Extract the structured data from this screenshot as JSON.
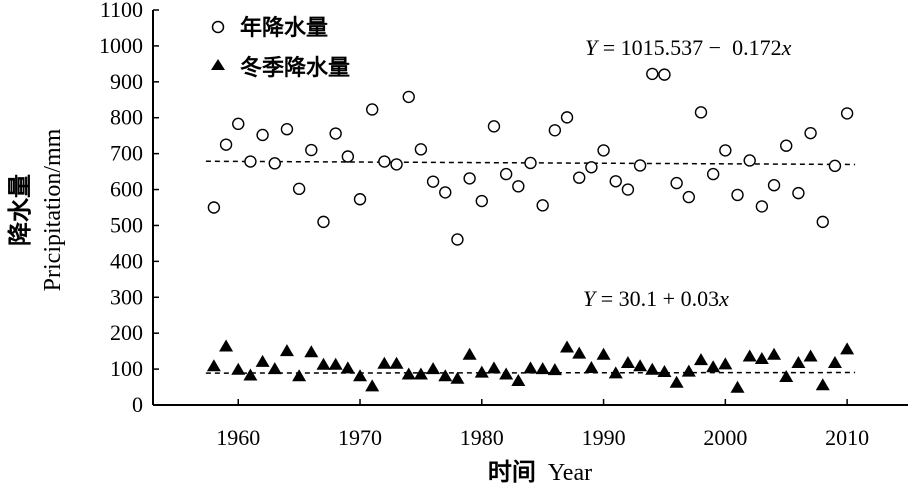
{
  "chart_data": {
    "type": "scatter",
    "x_axis": {
      "label_cn": "时间",
      "label_en": "Year",
      "range": [
        1953,
        2015
      ],
      "ticks": [
        1960,
        1970,
        1980,
        1990,
        2000,
        2010
      ]
    },
    "y_axis": {
      "label_cn": "降水量",
      "label_en": "Pricipitation/mm",
      "range": [
        0,
        1100
      ],
      "ticks": [
        0,
        100,
        200,
        300,
        400,
        500,
        600,
        700,
        800,
        900,
        1000,
        1100
      ]
    },
    "grid": false,
    "legend_position": "top-left",
    "series": [
      {
        "name": "年降水量",
        "marker": "circle-open",
        "x": [
          1958,
          1959,
          1960,
          1961,
          1962,
          1963,
          1964,
          1965,
          1966,
          1967,
          1968,
          1969,
          1970,
          1971,
          1972,
          1973,
          1974,
          1975,
          1976,
          1977,
          1978,
          1979,
          1980,
          1981,
          1982,
          1983,
          1984,
          1985,
          1986,
          1987,
          1988,
          1989,
          1990,
          1991,
          1992,
          1993,
          1994,
          1995,
          1996,
          1997,
          1998,
          1999,
          2000,
          2001,
          2002,
          2003,
          2004,
          2005,
          2006,
          2007,
          2008,
          2009,
          2010
        ],
        "y": [
          550,
          725,
          783,
          678,
          752,
          673,
          768,
          602,
          710,
          510,
          756,
          692,
          573,
          823,
          678,
          670,
          858,
          712,
          622,
          592,
          461,
          631,
          568,
          776,
          643,
          609,
          674,
          556,
          765,
          801,
          633,
          662,
          709,
          623,
          600,
          667,
          922,
          920,
          618,
          579,
          815,
          643,
          709,
          585,
          681,
          553,
          612,
          722,
          590,
          757,
          510,
          666,
          812
        ]
      },
      {
        "name": "冬季降水量",
        "marker": "triangle-filled",
        "x": [
          1958,
          1959,
          1960,
          1961,
          1962,
          1963,
          1964,
          1965,
          1966,
          1967,
          1968,
          1969,
          1970,
          1971,
          1972,
          1973,
          1974,
          1975,
          1976,
          1977,
          1978,
          1979,
          1980,
          1981,
          1982,
          1983,
          1984,
          1985,
          1986,
          1987,
          1988,
          1989,
          1990,
          1991,
          1992,
          1993,
          1994,
          1995,
          1996,
          1997,
          1998,
          1999,
          2000,
          2001,
          2002,
          2003,
          2004,
          2005,
          2006,
          2007,
          2008,
          2009,
          2010
        ],
        "y": [
          108,
          163,
          98,
          82,
          120,
          100,
          150,
          80,
          147,
          112,
          112,
          102,
          80,
          52,
          115,
          115,
          85,
          85,
          100,
          80,
          73,
          140,
          90,
          102,
          85,
          67,
          102,
          100,
          97,
          160,
          143,
          103,
          140,
          88,
          117,
          108,
          98,
          92,
          62,
          93,
          125,
          105,
          113,
          48,
          135,
          128,
          140,
          78,
          117,
          135,
          55,
          117,
          155
        ]
      }
    ],
    "trendlines": [
      {
        "series": "年降水量",
        "intercept": 1015.537,
        "slope": -0.172,
        "x_range": [
          1958,
          2010
        ]
      },
      {
        "series": "冬季降水量",
        "intercept": 30.1,
        "slope": 0.03,
        "x_range": [
          1958,
          2010
        ]
      }
    ],
    "annotations": {
      "annual_equation": {
        "y_var": "Y",
        "text": " = 1015.537 −  0.172",
        "x_var": "x"
      },
      "winter_equation": {
        "y_var": "Y",
        "text": " = 30.1 + 0.03",
        "x_var": "x"
      }
    }
  }
}
